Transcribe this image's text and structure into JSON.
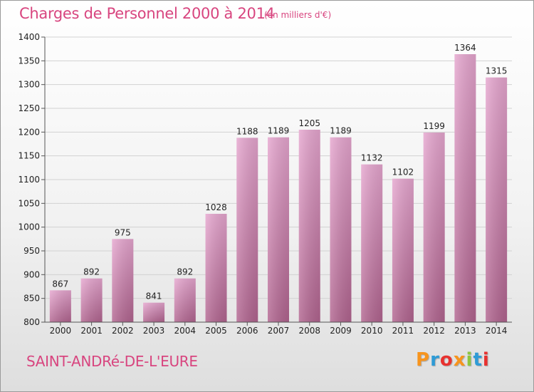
{
  "header": {
    "title": "Charges de Personnel 2000 à 2014",
    "subtitle": "(en milliers d'€)"
  },
  "footer": {
    "commune": "SAINT-ANDRé-DE-L'EURE",
    "logo": "Proxiti",
    "logo_colors": [
      "#f7941d",
      "#2e9bd6",
      "#e8312f",
      "#f7941d",
      "#8dc63f",
      "#2e9bd6",
      "#e8312f"
    ]
  },
  "colors": {
    "accent": "#d8457f",
    "bar_top": "#e6a6cf",
    "bar_bottom": "#b1648f"
  },
  "chart_data": {
    "type": "bar",
    "title": "Charges de Personnel 2000 à 2014",
    "subtitle": "(en milliers d'€)",
    "categories": [
      "2000",
      "2001",
      "2002",
      "2003",
      "2004",
      "2005",
      "2006",
      "2007",
      "2008",
      "2009",
      "2010",
      "2011",
      "2012",
      "2013",
      "2014"
    ],
    "values": [
      867,
      892,
      975,
      841,
      892,
      1028,
      1188,
      1189,
      1205,
      1189,
      1132,
      1102,
      1199,
      1364,
      1315
    ],
    "ylim": [
      800,
      1400
    ],
    "yticks": [
      800,
      850,
      900,
      950,
      1000,
      1050,
      1100,
      1150,
      1200,
      1250,
      1300,
      1350,
      1400
    ],
    "grid": true,
    "xlabel": "",
    "ylabel": ""
  }
}
